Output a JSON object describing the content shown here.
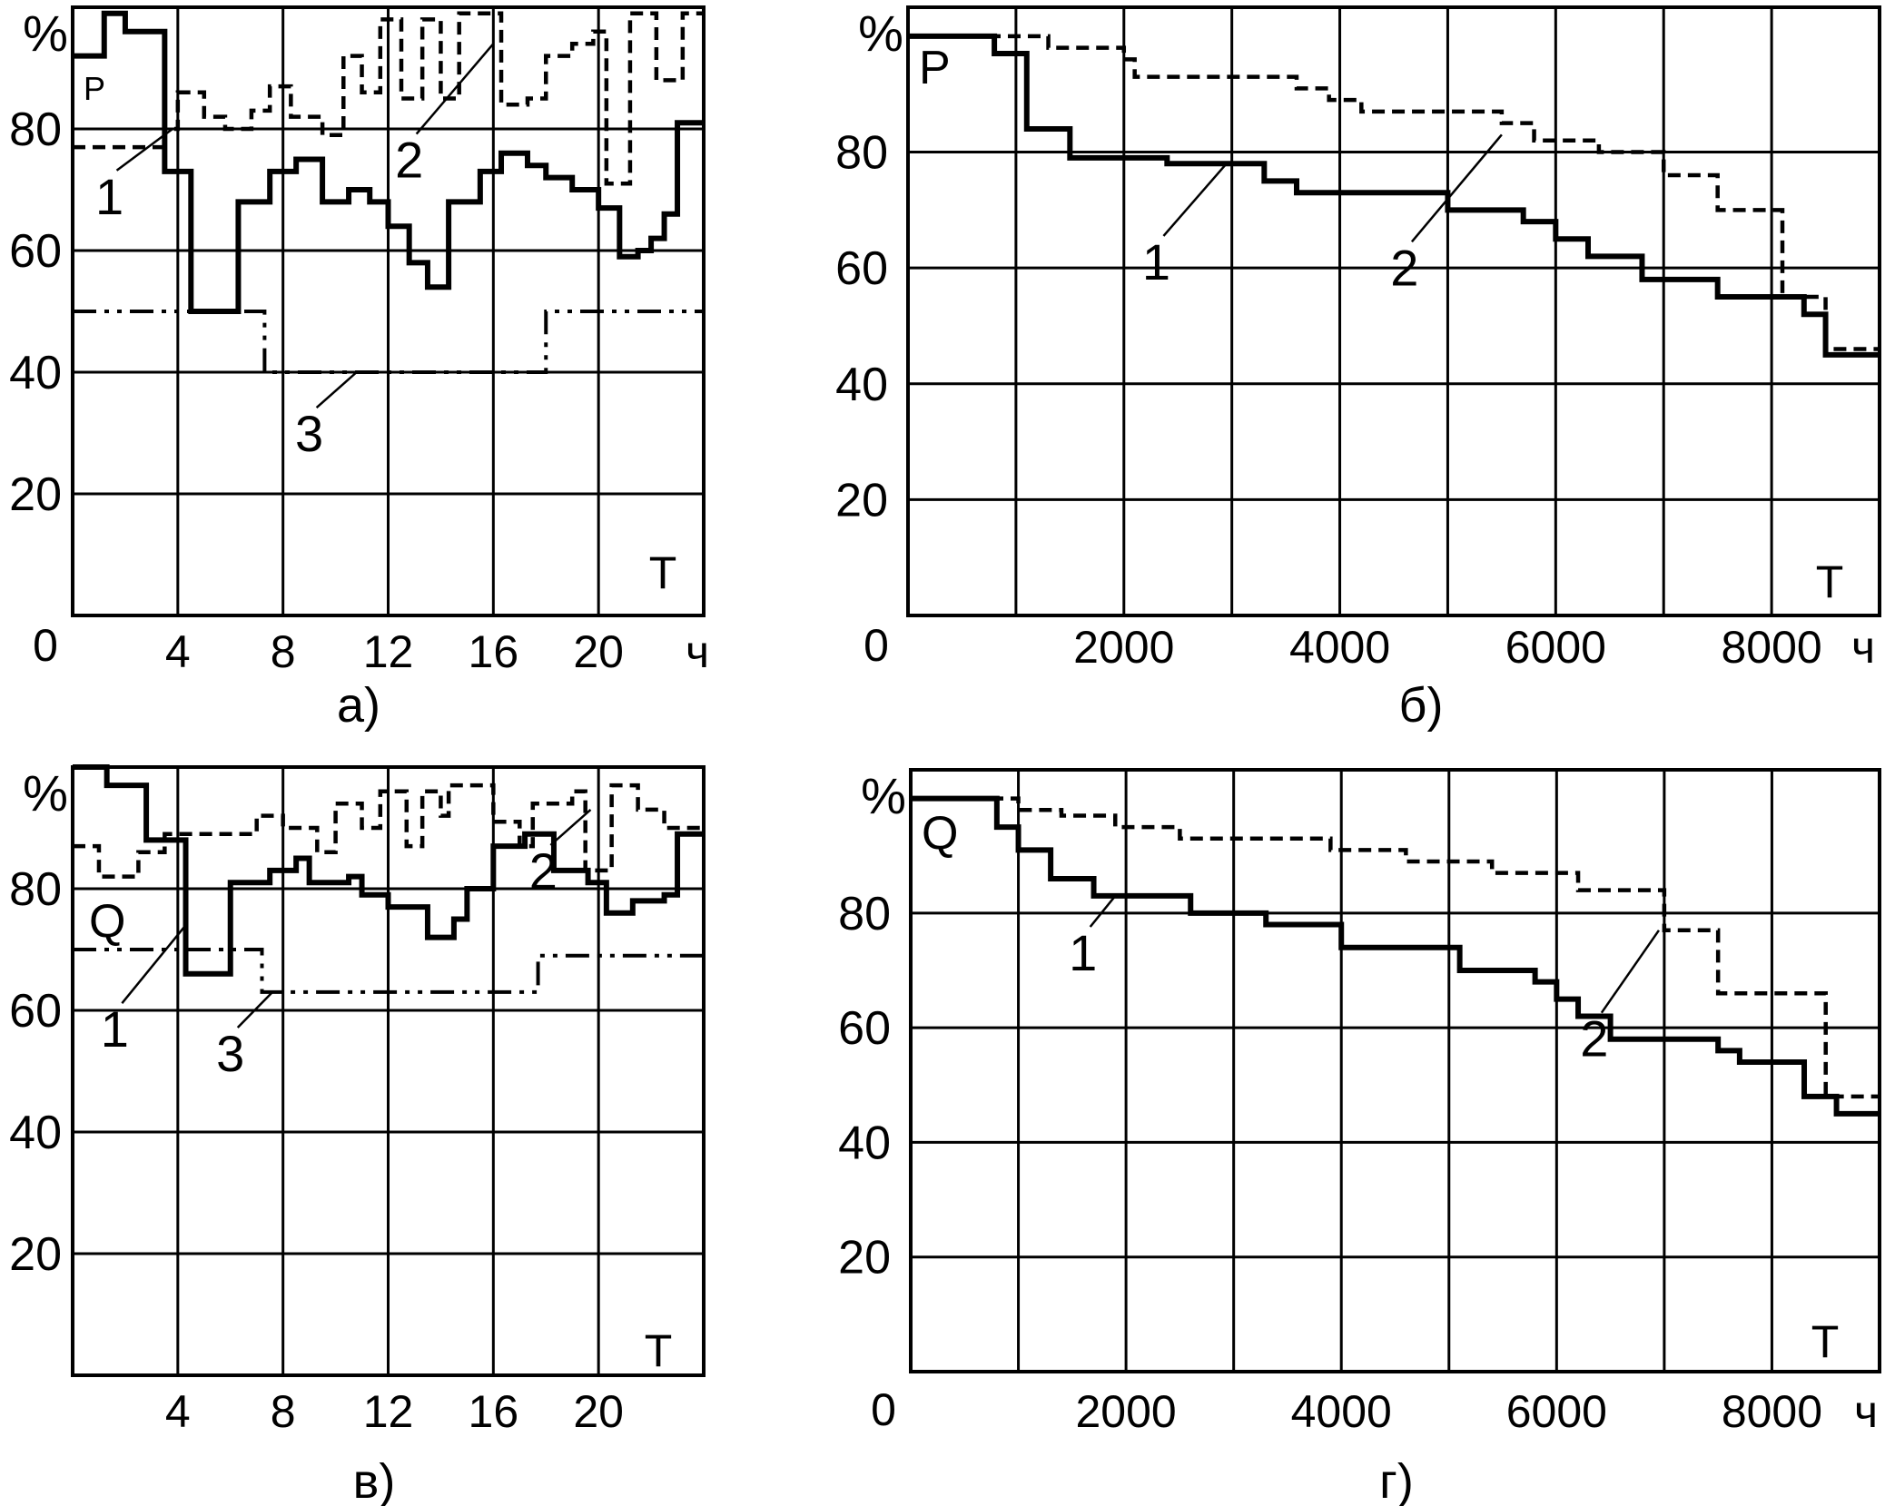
{
  "chart_data": [
    {
      "id": "a",
      "type": "line",
      "caption": "а)",
      "corner_label": "P",
      "y_unit": "%",
      "x_unit": "ч",
      "x_axis_name": "T",
      "origin_label": "0",
      "xlim": [
        0,
        24
      ],
      "ylim": [
        0,
        100
      ],
      "x_ticks": [
        4,
        8,
        12,
        16,
        20
      ],
      "x_tick_labels": [
        "4",
        "8",
        "12",
        "16",
        "20"
      ],
      "y_ticks": [
        20,
        40,
        60,
        80
      ],
      "y_tick_labels": [
        "20",
        "40",
        "60",
        "80"
      ],
      "grid_x": [
        4,
        8,
        12,
        16,
        20
      ],
      "grid_y": [
        20,
        40,
        60,
        80
      ],
      "series": [
        {
          "callout": "1",
          "style": "solid",
          "steps": [
            [
              0,
              92
            ],
            [
              1.2,
              99
            ],
            [
              2,
              96
            ],
            [
              3.5,
              73
            ],
            [
              4.5,
              50
            ],
            [
              6.3,
              68
            ],
            [
              7.5,
              73
            ],
            [
              8.5,
              75
            ],
            [
              9.5,
              68
            ],
            [
              10.5,
              70
            ],
            [
              11.3,
              68
            ],
            [
              12,
              64
            ],
            [
              12.8,
              58
            ],
            [
              13.5,
              54
            ],
            [
              14.3,
              68
            ],
            [
              15.5,
              73
            ],
            [
              16.3,
              76
            ],
            [
              17.3,
              74
            ],
            [
              18,
              72
            ],
            [
              19,
              70
            ],
            [
              20,
              67
            ],
            [
              20.8,
              59
            ],
            [
              21.5,
              60
            ],
            [
              22,
              62
            ],
            [
              22.5,
              66
            ],
            [
              23,
              81
            ],
            [
              24,
              81
            ]
          ],
          "callout_anchor": [
            3.8,
            80
          ],
          "callout_pos": [
            1.4,
            66
          ]
        },
        {
          "callout": "2",
          "style": "dashed",
          "steps": [
            [
              0,
              77
            ],
            [
              3.5,
              80
            ],
            [
              4,
              86
            ],
            [
              5,
              82
            ],
            [
              5.8,
              80
            ],
            [
              6.8,
              83
            ],
            [
              7.5,
              87
            ],
            [
              8.3,
              82
            ],
            [
              9.5,
              79
            ],
            [
              10.3,
              92
            ],
            [
              11,
              86
            ],
            [
              11.7,
              98
            ],
            [
              12.5,
              85
            ],
            [
              13.3,
              98
            ],
            [
              14,
              85
            ],
            [
              14.7,
              99
            ],
            [
              16.3,
              84
            ],
            [
              17.3,
              85
            ],
            [
              18,
              92
            ],
            [
              19,
              94
            ],
            [
              19.8,
              96
            ],
            [
              20.3,
              71
            ],
            [
              21.2,
              99
            ],
            [
              22.2,
              88
            ],
            [
              23.2,
              99
            ],
            [
              24,
              99
            ]
          ],
          "callout_anchor": [
            16,
            94
          ],
          "callout_pos": [
            12.8,
            72
          ]
        },
        {
          "callout": "3",
          "style": "dash-dot-dot",
          "steps": [
            [
              0,
              50
            ],
            [
              7.3,
              40
            ],
            [
              18,
              50
            ],
            [
              24,
              50
            ]
          ],
          "callout_anchor": [
            10.8,
            40
          ],
          "callout_pos": [
            9,
            27
          ]
        }
      ]
    },
    {
      "id": "b",
      "type": "line",
      "caption": "б)",
      "corner_label": "P",
      "y_unit": "%",
      "x_unit": "ч",
      "x_axis_name": "T",
      "origin_label": "0",
      "xlim": [
        0,
        9000
      ],
      "ylim": [
        0,
        105
      ],
      "x_ticks": [
        2000,
        4000,
        6000,
        8000
      ],
      "x_tick_labels": [
        "2000",
        "4000",
        "6000",
        "8000"
      ],
      "y_ticks": [
        20,
        40,
        60,
        80
      ],
      "y_tick_labels": [
        "20",
        "40",
        "60",
        "80"
      ],
      "grid_x": [
        1000,
        2000,
        3000,
        4000,
        5000,
        6000,
        7000,
        8000
      ],
      "grid_y": [
        20,
        40,
        60,
        80
      ],
      "series": [
        {
          "callout": "1",
          "style": "solid",
          "steps": [
            [
              0,
              100
            ],
            [
              800,
              97
            ],
            [
              1100,
              84
            ],
            [
              1500,
              79
            ],
            [
              2400,
              78
            ],
            [
              3300,
              75
            ],
            [
              3600,
              73
            ],
            [
              5000,
              70
            ],
            [
              5700,
              68
            ],
            [
              6000,
              65
            ],
            [
              6300,
              62
            ],
            [
              6800,
              58
            ],
            [
              7500,
              55
            ],
            [
              8300,
              52
            ],
            [
              8500,
              45
            ],
            [
              8600,
              45
            ],
            [
              9000,
              45
            ]
          ],
          "callout_anchor": [
            2950,
            78
          ],
          "callout_pos": [
            2300,
            58
          ]
        },
        {
          "callout": "2",
          "style": "dashed",
          "steps": [
            [
              0,
              100
            ],
            [
              1300,
              98
            ],
            [
              2000,
              96
            ],
            [
              2100,
              93
            ],
            [
              3600,
              91
            ],
            [
              3900,
              89
            ],
            [
              4200,
              87
            ],
            [
              5500,
              85
            ],
            [
              5800,
              82
            ],
            [
              6400,
              80
            ],
            [
              7000,
              76
            ],
            [
              7500,
              70
            ],
            [
              8100,
              55
            ],
            [
              8500,
              46
            ],
            [
              8700,
              46
            ],
            [
              9000,
              46
            ]
          ],
          "callout_anchor": [
            5500,
            83
          ],
          "callout_pos": [
            4600,
            57
          ]
        }
      ]
    },
    {
      "id": "v",
      "type": "line",
      "caption": "в)",
      "corner_label": "Q",
      "y_unit": "%",
      "x_unit": "",
      "x_axis_name": "T",
      "origin_label": "",
      "xlim": [
        0,
        24
      ],
      "ylim": [
        0,
        100
      ],
      "x_ticks": [
        4,
        8,
        12,
        16,
        20
      ],
      "x_tick_labels": [
        "4",
        "8",
        "12",
        "16",
        "20"
      ],
      "y_ticks": [
        20,
        40,
        60,
        80
      ],
      "y_tick_labels": [
        "20",
        "40",
        "60",
        "80"
      ],
      "grid_x": [
        4,
        8,
        12,
        16,
        20
      ],
      "grid_y": [
        20,
        40,
        60,
        80
      ],
      "series": [
        {
          "callout": "1",
          "style": "solid",
          "steps": [
            [
              0,
              100
            ],
            [
              1.3,
              97
            ],
            [
              2.8,
              88
            ],
            [
              4.3,
              66
            ],
            [
              6,
              81
            ],
            [
              7.5,
              83
            ],
            [
              8.5,
              85
            ],
            [
              9,
              81
            ],
            [
              10.5,
              82
            ],
            [
              11,
              79
            ],
            [
              12,
              77
            ],
            [
              13.5,
              72
            ],
            [
              14.5,
              75
            ],
            [
              15,
              80
            ],
            [
              16,
              87
            ],
            [
              17.2,
              89
            ],
            [
              18.3,
              83
            ],
            [
              19.6,
              81
            ],
            [
              20.3,
              76
            ],
            [
              21.3,
              78
            ],
            [
              22.5,
              79
            ],
            [
              23,
              89
            ],
            [
              24,
              89
            ]
          ],
          "callout_anchor": [
            4.3,
            74
          ],
          "callout_pos": [
            1.6,
            54
          ]
        },
        {
          "callout": "2",
          "style": "dashed",
          "steps": [
            [
              0,
              87
            ],
            [
              1,
              82
            ],
            [
              2.5,
              86
            ],
            [
              3.5,
              89
            ],
            [
              5.5,
              89
            ],
            [
              6,
              89
            ],
            [
              7,
              92
            ],
            [
              8,
              90
            ],
            [
              9.3,
              86
            ],
            [
              10,
              94
            ],
            [
              11,
              90
            ],
            [
              11.7,
              96
            ],
            [
              12.7,
              87
            ],
            [
              13.3,
              96
            ],
            [
              14,
              92
            ],
            [
              14.3,
              97
            ],
            [
              16,
              91
            ],
            [
              17,
              87
            ],
            [
              17.5,
              94
            ],
            [
              19,
              96
            ],
            [
              19.5,
              83
            ],
            [
              20.5,
              97
            ],
            [
              21.5,
              93
            ],
            [
              22.5,
              90
            ],
            [
              24,
              90
            ]
          ],
          "callout_anchor": [
            19.7,
            93
          ],
          "callout_pos": [
            17.9,
            80
          ]
        },
        {
          "callout": "3",
          "style": "dash-dot-dot",
          "steps": [
            [
              0,
              70
            ],
            [
              4.5,
              70
            ],
            [
              7.2,
              63
            ],
            [
              17.7,
              69
            ],
            [
              24,
              69
            ]
          ],
          "callout_anchor": [
            7.6,
            63
          ],
          "callout_pos": [
            6,
            50
          ]
        }
      ]
    },
    {
      "id": "g",
      "type": "line",
      "caption": "г)",
      "corner_label": "Q",
      "y_unit": "%",
      "x_unit": "ч",
      "x_axis_name": "T",
      "origin_label": "0",
      "xlim": [
        0,
        9000
      ],
      "ylim": [
        0,
        105
      ],
      "x_ticks": [
        2000,
        4000,
        6000,
        8000
      ],
      "x_tick_labels": [
        "2000",
        "4000",
        "6000",
        "8000"
      ],
      "y_ticks": [
        20,
        40,
        60,
        80
      ],
      "y_tick_labels": [
        "20",
        "40",
        "60",
        "80"
      ],
      "grid_x": [
        1000,
        2000,
        3000,
        4000,
        5000,
        6000,
        7000,
        8000
      ],
      "grid_y": [
        20,
        40,
        60,
        80
      ],
      "series": [
        {
          "callout": "1",
          "style": "solid",
          "steps": [
            [
              0,
              100
            ],
            [
              800,
              95
            ],
            [
              1000,
              91
            ],
            [
              1300,
              86
            ],
            [
              1700,
              83
            ],
            [
              2600,
              80
            ],
            [
              3300,
              78
            ],
            [
              4000,
              74
            ],
            [
              5100,
              70
            ],
            [
              5800,
              68
            ],
            [
              6000,
              65
            ],
            [
              6200,
              62
            ],
            [
              6500,
              58
            ],
            [
              6900,
              58
            ],
            [
              7500,
              56
            ],
            [
              7700,
              54
            ],
            [
              8300,
              48
            ],
            [
              8600,
              45
            ],
            [
              9000,
              45
            ]
          ],
          "callout_anchor": [
            1900,
            83
          ],
          "callout_pos": [
            1600,
            70
          ]
        },
        {
          "callout": "2",
          "style": "dashed",
          "steps": [
            [
              0,
              100
            ],
            [
              1000,
              98
            ],
            [
              1400,
              97
            ],
            [
              1900,
              95
            ],
            [
              2500,
              93
            ],
            [
              3900,
              91
            ],
            [
              4600,
              89
            ],
            [
              5400,
              87
            ],
            [
              6200,
              84
            ],
            [
              7000,
              77
            ],
            [
              7500,
              66
            ],
            [
              8500,
              48
            ],
            [
              9000,
              48
            ]
          ],
          "callout_anchor": [
            6950,
            77
          ],
          "callout_pos": [
            6350,
            55
          ]
        }
      ]
    }
  ]
}
